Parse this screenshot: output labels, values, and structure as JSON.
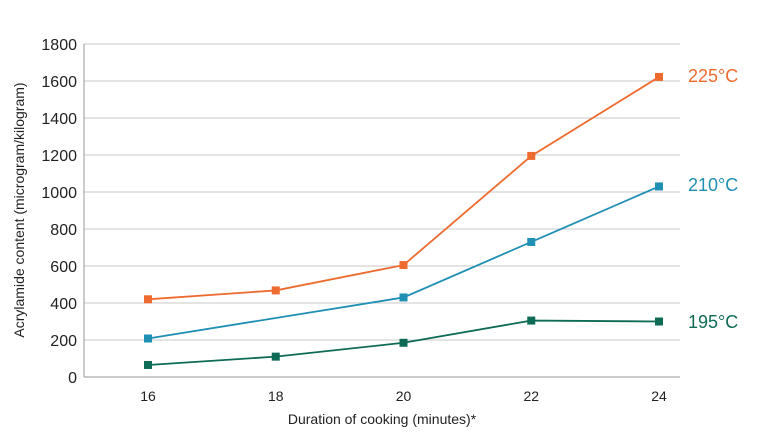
{
  "chart_data": {
    "type": "line",
    "xlabel": "Duration of cooking (minutes)*",
    "ylabel": "Acrylamide content (microgram/kilogram)",
    "x": [
      16,
      18,
      20,
      22,
      24
    ],
    "x_tick_labels": [
      "16",
      "18",
      "20",
      "22",
      "24"
    ],
    "ylim": [
      0,
      1800
    ],
    "y_ticks": [
      0,
      200,
      400,
      600,
      800,
      1000,
      1200,
      1400,
      1600,
      1800
    ],
    "grid": "horizontal",
    "legend": "right, labels at line ends",
    "series": [
      {
        "name": "225°C",
        "color": "#ee6b2f",
        "values": [
          420,
          468,
          605,
          1195,
          1622
        ]
      },
      {
        "name": "210°C",
        "color": "#1f8fb3",
        "values": [
          208,
          null,
          430,
          730,
          1030
        ]
      },
      {
        "name": "195°C",
        "color": "#0e6b56",
        "values": [
          65,
          110,
          185,
          305,
          300
        ]
      }
    ]
  }
}
